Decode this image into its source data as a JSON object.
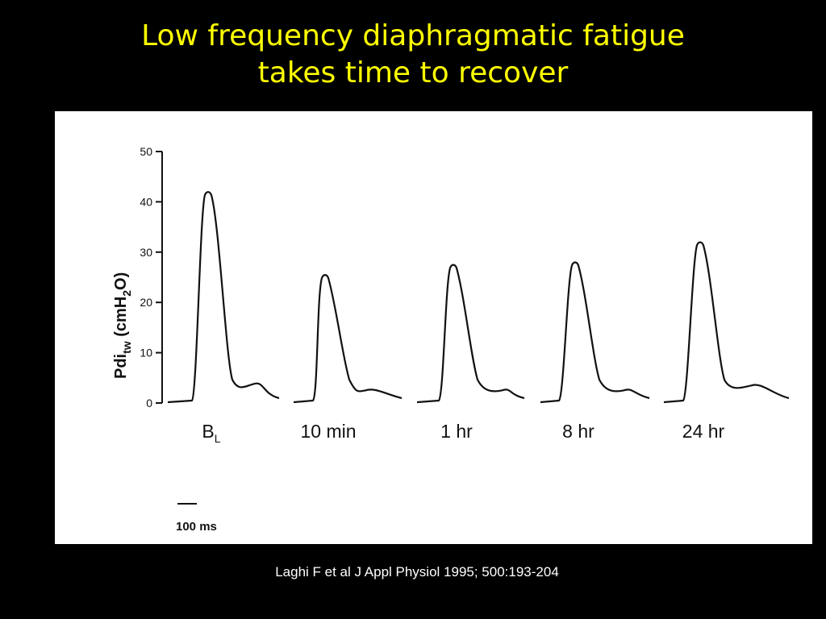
{
  "slide": {
    "title_line1": "Low frequency diaphragmatic fatigue",
    "title_line2": "takes time to recover",
    "citation": "Laghi F et al J Appl Physiol 1995; 500:193-204"
  },
  "colors": {
    "background": "#000000",
    "title": "#ffff00",
    "citation": "#ffffff",
    "panel": "#ffffff",
    "trace": "#111111"
  },
  "chart_data": {
    "type": "line",
    "title": "",
    "xlabel": "",
    "ylabel": "Pdi",
    "ylabel_subscript": "tw",
    "ylabel_unit_pre": " (cmH",
    "ylabel_unit_sub": "2",
    "ylabel_unit_post": "O)",
    "ylim": [
      0,
      50
    ],
    "yticks": [
      0,
      10,
      20,
      30,
      40,
      50
    ],
    "grid": false,
    "legend": "none",
    "scale_bar_label": "100 ms",
    "series": [
      {
        "label": "B",
        "label_subscript": "L",
        "peak": 42,
        "shoulder": 3.8
      },
      {
        "label": "10 min",
        "peak": 25.5,
        "shoulder": 2.5
      },
      {
        "label": "1 hr",
        "peak": 27.5,
        "shoulder": 2.5
      },
      {
        "label": "8 hr",
        "peak": 28,
        "shoulder": 2.5
      },
      {
        "label": "24 hr",
        "peak": 32,
        "shoulder": 3.5
      }
    ]
  }
}
